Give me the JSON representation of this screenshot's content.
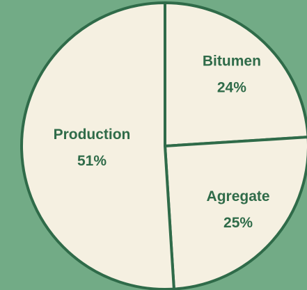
{
  "chart_data": {
    "type": "pie",
    "categories": [
      "Bitumen",
      "Agregate",
      "Production"
    ],
    "values": [
      24,
      25,
      51
    ],
    "value_labels": [
      "24%",
      "25%",
      "51%"
    ],
    "color": "#f5f0e1",
    "edge_color": "#2f6b49"
  }
}
